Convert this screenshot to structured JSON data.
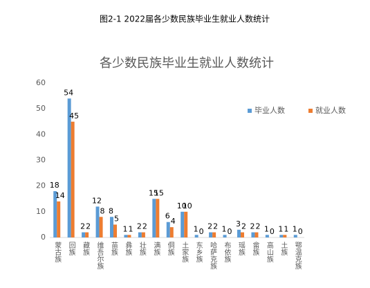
{
  "page_title": "图2-1 2022届各少数民族毕业生就业人数统计",
  "chart_data": {
    "type": "bar",
    "title": "各少数民族毕业生就业人数统计",
    "categories": [
      "蒙古族",
      "回族",
      "藏族",
      "维吾尔族",
      "苗族",
      "彝族",
      "壮族",
      "满族",
      "侗族",
      "土家族",
      "东乡族",
      "哈萨克族",
      "布依族",
      "瑶族",
      "畲族",
      "高山族",
      "土族",
      "鄂温克族"
    ],
    "series": [
      {
        "name": "毕业人数",
        "color": "#5b9bd5",
        "values": [
          18,
          54,
          2,
          12,
          8,
          1,
          2,
          15,
          6,
          10,
          1,
          2,
          1,
          3,
          2,
          1,
          1,
          1
        ]
      },
      {
        "name": "就业人数",
        "color": "#ed7d31",
        "values": [
          14,
          45,
          2,
          8,
          5,
          1,
          2,
          15,
          4,
          10,
          0,
          2,
          0,
          2,
          2,
          0,
          1,
          0
        ]
      }
    ],
    "ylim": [
      0,
      60
    ],
    "yticks": [
      0,
      10,
      20,
      30,
      40,
      50,
      60
    ],
    "grid": false,
    "legend": "right"
  }
}
